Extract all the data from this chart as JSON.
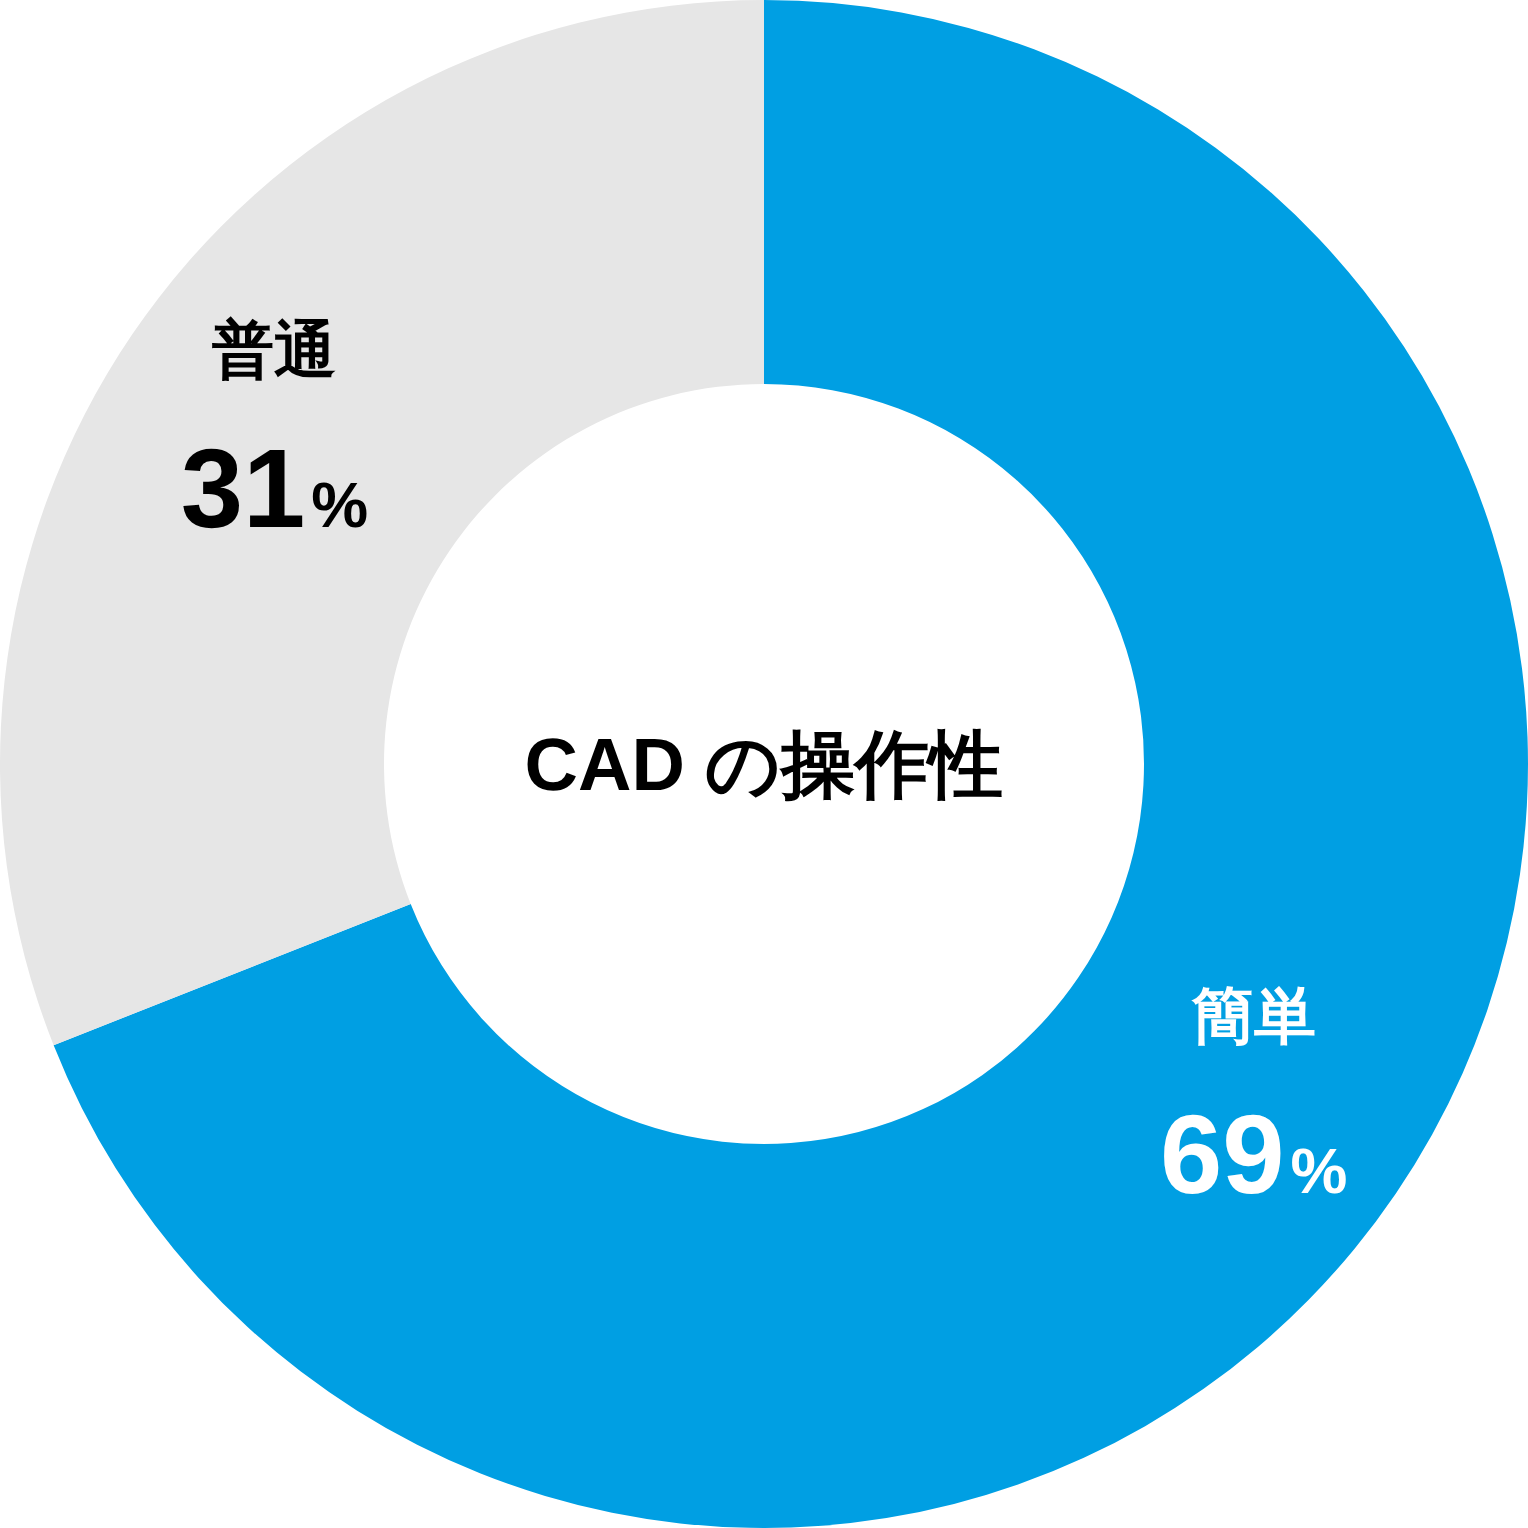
{
  "chart_data": {
    "type": "donut",
    "title": "CAD の操作性",
    "categories": [
      "簡単",
      "普通"
    ],
    "values": [
      69,
      31
    ],
    "colors": [
      "#009fe3",
      "#e6e6e6"
    ],
    "value_labels": [
      "69%",
      "31%"
    ]
  }
}
